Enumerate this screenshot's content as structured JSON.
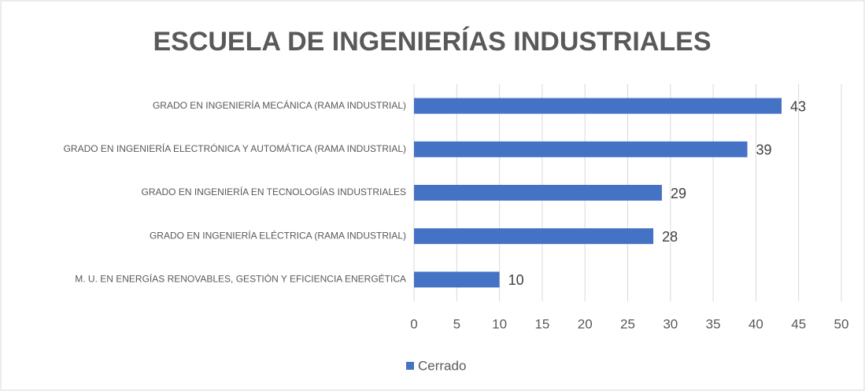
{
  "chart_data": {
    "type": "bar",
    "orientation": "horizontal",
    "title": "ESCUELA DE INGENIERÍAS INDUSTRIALES",
    "categories": [
      "GRADO EN INGENIERÍA MECÁNICA (RAMA INDUSTRIAL)",
      "GRADO EN INGENIERÍA ELECTRÓNICA Y AUTOMÁTICA (RAMA INDUSTRIAL)",
      "GRADO EN INGENIERÍA EN TECNOLOGÍAS INDUSTRIALES",
      "GRADO EN INGENIERÍA ELÉCTRICA (RAMA INDUSTRIAL)",
      "M. U. EN ENERGÍAS RENOVABLES, GESTIÓN Y EFICIENCIA ENERGÉTICA"
    ],
    "series": [
      {
        "name": "Cerrado",
        "color": "#4472c4",
        "values": [
          43,
          39,
          29,
          28,
          10
        ]
      }
    ],
    "xlim": [
      0,
      50
    ],
    "xticks": [
      0,
      5,
      10,
      15,
      20,
      25,
      30,
      35,
      40,
      45,
      50
    ],
    "grid": true,
    "legend": "bottom"
  }
}
